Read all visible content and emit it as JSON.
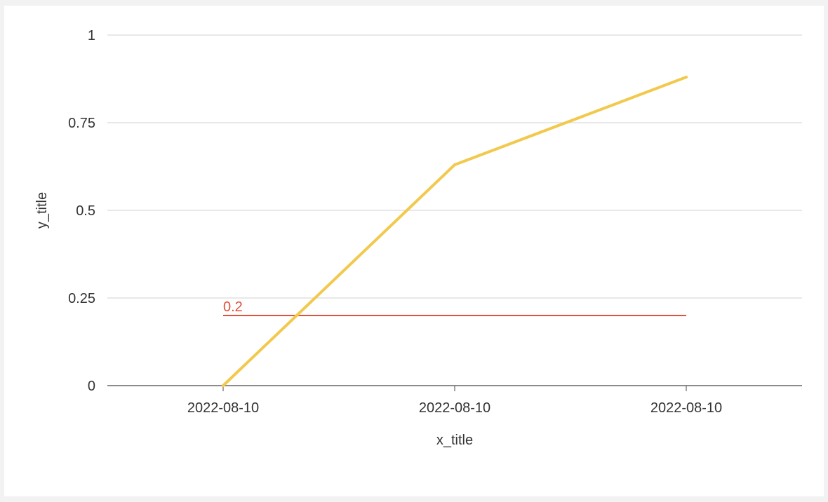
{
  "chart_data": {
    "type": "line",
    "xlabel": "x_title",
    "ylabel": "y_title",
    "categories": [
      "2022-08-10",
      "2022-08-10",
      "2022-08-10"
    ],
    "series": [
      {
        "values": [
          0,
          0.63,
          0.88
        ],
        "color": "#f2c94c"
      }
    ],
    "ylim": [
      0,
      1
    ],
    "yticks": [
      0,
      0.25,
      0.5,
      0.75,
      1
    ],
    "ytick_labels": [
      "0",
      "0.25",
      "0.5",
      "0.75",
      "1"
    ],
    "grid": true,
    "reference_lines": [
      {
        "value": 0.2,
        "label": "0.2",
        "color": "#e0503a"
      }
    ],
    "colors": {
      "grid": "#d9d9d9",
      "axis": "#666666",
      "text": "#333333"
    }
  }
}
